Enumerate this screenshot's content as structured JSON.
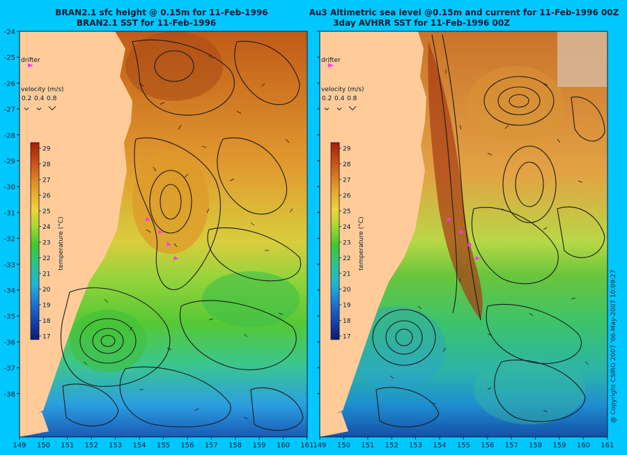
{
  "left_panel": {
    "title_line1": "BRAN2.1 sfc height @ 0.15m for 11-Feb-1996",
    "title_line2": "BRAN2.1 SST for 11-Feb-1996",
    "drifter_label": "drifter",
    "velocity_title": "velocity (m/s)",
    "velocity_values": [
      "0.2",
      "0.4",
      "0.8"
    ],
    "colorbar_label": "temperature (°C)"
  },
  "right_panel": {
    "title_line1": "Au3 Altimetric sea level  @0.15m and current for 11-Feb-1996 00Z",
    "title_line2": "3day AVHRR SST for 11-Feb-1996 00Z",
    "drifter_label": "drifter",
    "velocity_title": "velocity (m/s)",
    "velocity_values": [
      "0.2",
      "0.4",
      "0.8"
    ],
    "colorbar_label": "temperature (°C)"
  },
  "axes": {
    "lat_ticks": [
      "-24",
      "-25",
      "-26",
      "-27",
      "-28",
      "-29",
      "-30",
      "-31",
      "-32",
      "-33",
      "-34",
      "-35",
      "-36",
      "-37",
      "-38"
    ],
    "lon_ticks_left": [
      "149",
      "150",
      "151",
      "152",
      "153",
      "154",
      "155",
      "156",
      "157",
      "158",
      "159",
      "160",
      "161"
    ],
    "lon_ticks_right": [
      "149",
      "150",
      "151",
      "152",
      "153",
      "154",
      "155",
      "156",
      "157",
      "158",
      "159",
      "160",
      "161"
    ]
  },
  "colorbar": {
    "ticks": [
      "29",
      "28",
      "27",
      "26",
      "25",
      "24",
      "23",
      "22",
      "21",
      "20",
      "19",
      "18",
      "17"
    ]
  },
  "copyright": "@ Copyright CSIRO 2007 '06-May-2007 10:09:27",
  "colors": {
    "background": "#00c8ff",
    "land": "#ffcc99",
    "drifter": "#ff33ff"
  }
}
